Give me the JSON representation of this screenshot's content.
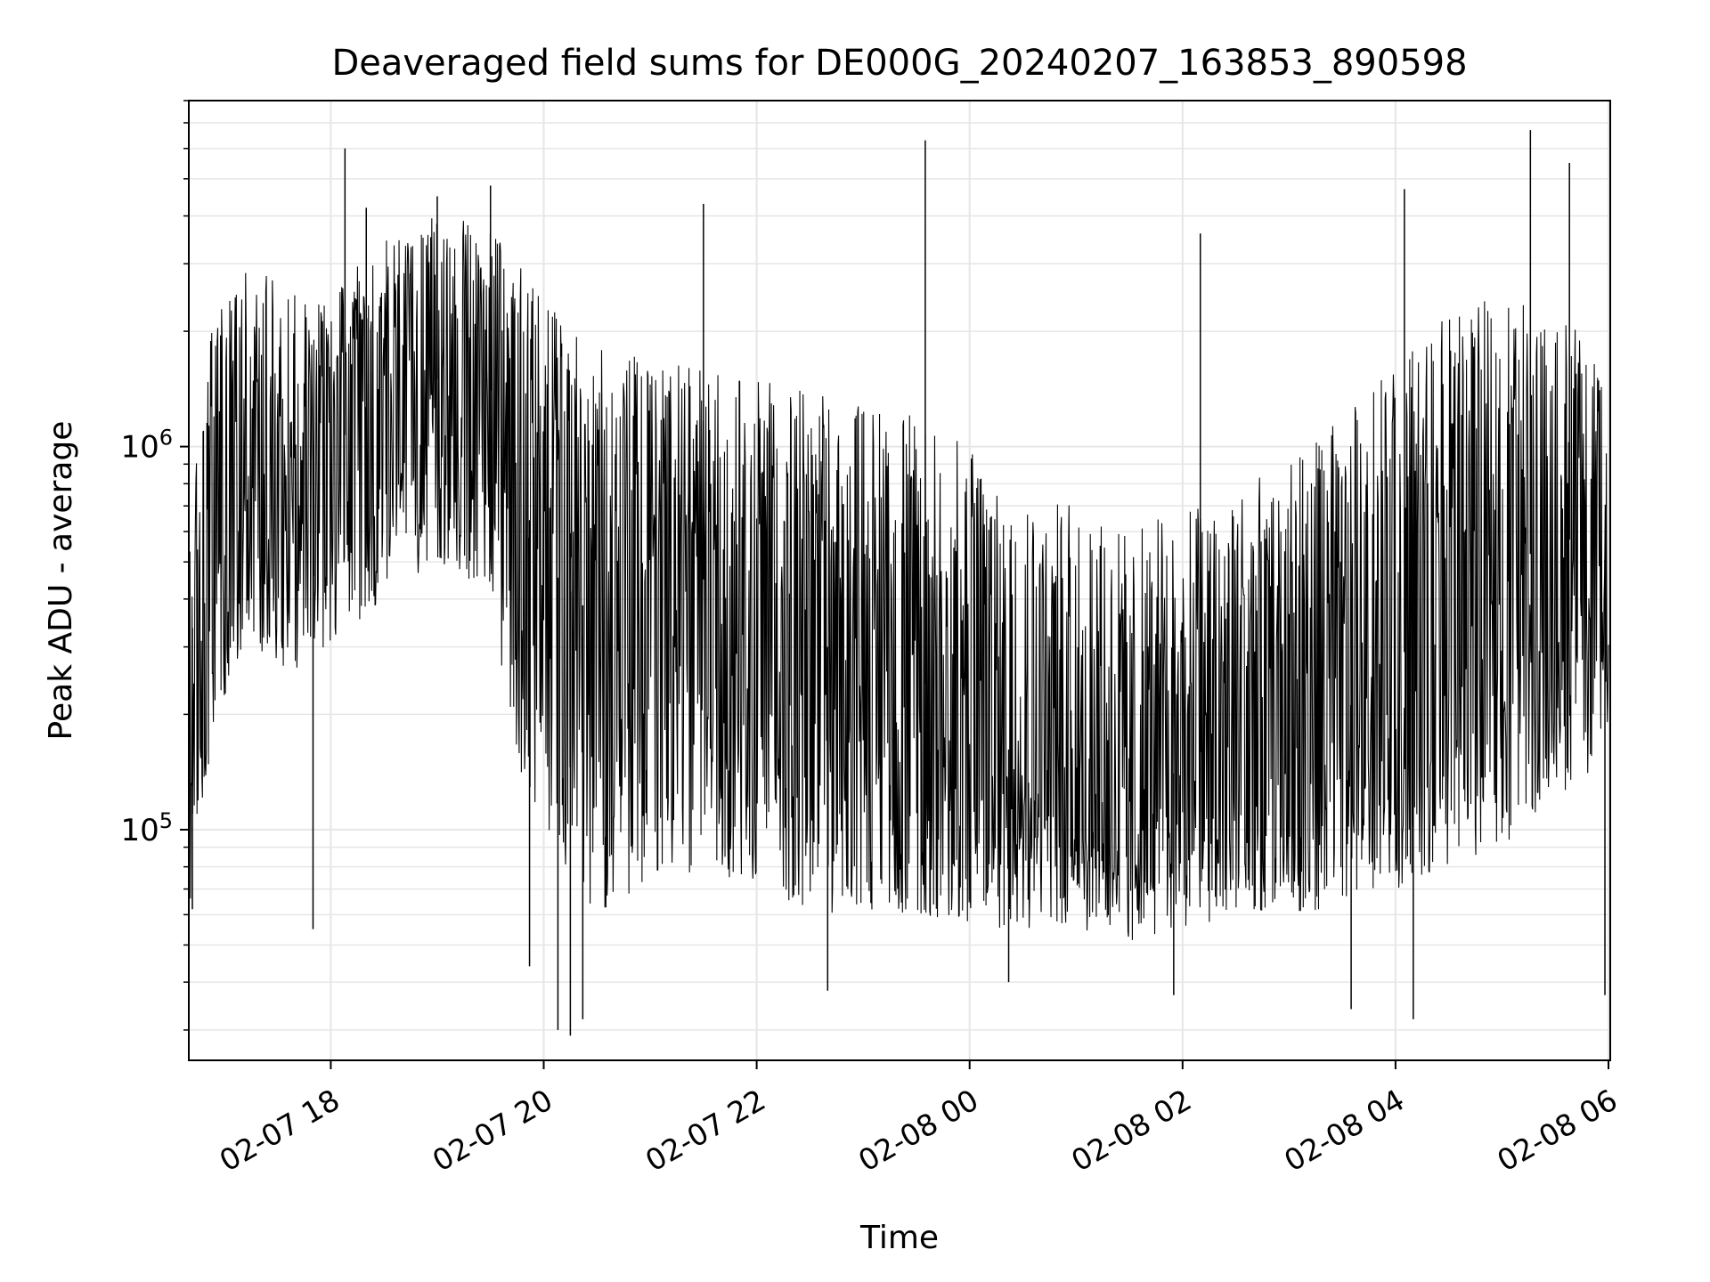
{
  "chart_data": {
    "type": "line",
    "title": "Deaveraged field sums for DE000G_20240207_163853_890598",
    "xlabel": "Time",
    "ylabel": "Peak ADU - average",
    "x_type": "datetime",
    "x_range": [
      "2024-02-07T16:40",
      "2024-02-08T06:01"
    ],
    "x_ticks": [
      {
        "t": "2024-02-07T18:00",
        "label": "02-07 18"
      },
      {
        "t": "2024-02-07T20:00",
        "label": "02-07 20"
      },
      {
        "t": "2024-02-07T22:00",
        "label": "02-07 22"
      },
      {
        "t": "2024-02-08T00:00",
        "label": "02-08 00"
      },
      {
        "t": "2024-02-08T02:00",
        "label": "02-08 02"
      },
      {
        "t": "2024-02-08T04:00",
        "label": "02-08 04"
      },
      {
        "t": "2024-02-08T06:00",
        "label": "02-08 06"
      }
    ],
    "y_scale": "log",
    "ylim": [
      25000,
      8000000
    ],
    "y_ticks": [
      {
        "value": 100000,
        "base": "10",
        "exp": "5"
      },
      {
        "value": 1000000,
        "base": "10",
        "exp": "6"
      }
    ],
    "grid": true,
    "line_color": "#000000",
    "grid_color": "#e6e6e6",
    "series": [
      {
        "envelope": [
          {
            "t": "2024-02-07T16:40",
            "low": 60000,
            "median": 300000,
            "high": 620000
          },
          {
            "t": "2024-02-07T16:55",
            "low": 200000,
            "median": 700000,
            "high": 2500000
          },
          {
            "t": "2024-02-07T17:15",
            "low": 300000,
            "median": 900000,
            "high": 3000000
          },
          {
            "t": "2024-02-07T17:40",
            "low": 250000,
            "median": 800000,
            "high": 2500000
          },
          {
            "t": "2024-02-07T18:00",
            "low": 300000,
            "median": 1000000,
            "high": 2500000
          },
          {
            "t": "2024-02-07T18:30",
            "low": 400000,
            "median": 1300000,
            "high": 3500000
          },
          {
            "t": "2024-02-07T19:00",
            "low": 500000,
            "median": 1500000,
            "high": 4000000
          },
          {
            "t": "2024-02-07T19:30",
            "low": 400000,
            "median": 1400000,
            "high": 3800000
          },
          {
            "t": "2024-02-07T19:45",
            "low": 150000,
            "median": 800000,
            "high": 3000000
          },
          {
            "t": "2024-02-07T20:00",
            "low": 100000,
            "median": 500000,
            "high": 2500000
          },
          {
            "t": "2024-02-07T20:30",
            "low": 60000,
            "median": 350000,
            "high": 1800000
          },
          {
            "t": "2024-02-07T21:00",
            "low": 70000,
            "median": 400000,
            "high": 1700000
          },
          {
            "t": "2024-02-07T21:30",
            "low": 80000,
            "median": 450000,
            "high": 1600000
          },
          {
            "t": "2024-02-07T22:00",
            "low": 70000,
            "median": 380000,
            "high": 1500000
          },
          {
            "t": "2024-02-07T22:30",
            "low": 60000,
            "median": 300000,
            "high": 1400000
          },
          {
            "t": "2024-02-07T23:00",
            "low": 60000,
            "median": 300000,
            "high": 1300000
          },
          {
            "t": "2024-02-07T23:30",
            "low": 60000,
            "median": 250000,
            "high": 1200000
          },
          {
            "t": "2024-02-08T00:00",
            "low": 55000,
            "median": 200000,
            "high": 1000000
          },
          {
            "t": "2024-02-08T00:30",
            "low": 55000,
            "median": 150000,
            "high": 800000
          },
          {
            "t": "2024-02-08T01:00",
            "low": 55000,
            "median": 120000,
            "high": 700000
          },
          {
            "t": "2024-02-08T01:30",
            "low": 50000,
            "median": 100000,
            "high": 600000
          },
          {
            "t": "2024-02-08T02:00",
            "low": 55000,
            "median": 150000,
            "high": 700000
          },
          {
            "t": "2024-02-08T02:30",
            "low": 60000,
            "median": 180000,
            "high": 800000
          },
          {
            "t": "2024-02-08T03:00",
            "low": 60000,
            "median": 170000,
            "high": 900000
          },
          {
            "t": "2024-02-08T03:30",
            "low": 60000,
            "median": 200000,
            "high": 1200000
          },
          {
            "t": "2024-02-08T04:00",
            "low": 70000,
            "median": 280000,
            "high": 1700000
          },
          {
            "t": "2024-02-08T04:30",
            "low": 80000,
            "median": 350000,
            "high": 2200000
          },
          {
            "t": "2024-02-08T05:00",
            "low": 90000,
            "median": 450000,
            "high": 2500000
          },
          {
            "t": "2024-02-08T05:30",
            "low": 120000,
            "median": 600000,
            "high": 2500000
          },
          {
            "t": "2024-02-08T06:00",
            "low": 150000,
            "median": 500000,
            "high": 1500000
          }
        ],
        "spikes": [
          {
            "t": "2024-02-07T18:08",
            "value": 6000000
          },
          {
            "t": "2024-02-07T18:20",
            "value": 4200000
          },
          {
            "t": "2024-02-07T19:00",
            "value": 4500000
          },
          {
            "t": "2024-02-07T19:30",
            "value": 4800000
          },
          {
            "t": "2024-02-07T21:30",
            "value": 4300000
          },
          {
            "t": "2024-02-07T23:35",
            "value": 6300000
          },
          {
            "t": "2024-02-08T02:10",
            "value": 3600000
          },
          {
            "t": "2024-02-08T04:05",
            "value": 4700000
          },
          {
            "t": "2024-02-08T05:16",
            "value": 6700000
          },
          {
            "t": "2024-02-08T05:38",
            "value": 5500000
          }
        ],
        "dips": [
          {
            "t": "2024-02-07T16:42",
            "value": 62000
          },
          {
            "t": "2024-02-07T17:50",
            "value": 55000
          },
          {
            "t": "2024-02-07T19:52",
            "value": 44000
          },
          {
            "t": "2024-02-07T20:08",
            "value": 30000
          },
          {
            "t": "2024-02-07T20:15",
            "value": 29000
          },
          {
            "t": "2024-02-07T20:22",
            "value": 32000
          },
          {
            "t": "2024-02-07T22:40",
            "value": 38000
          },
          {
            "t": "2024-02-08T00:22",
            "value": 40000
          },
          {
            "t": "2024-02-08T01:55",
            "value": 37000
          },
          {
            "t": "2024-02-08T03:35",
            "value": 34000
          },
          {
            "t": "2024-02-08T04:10",
            "value": 32000
          },
          {
            "t": "2024-02-08T05:58",
            "value": 37000
          }
        ]
      }
    ]
  }
}
